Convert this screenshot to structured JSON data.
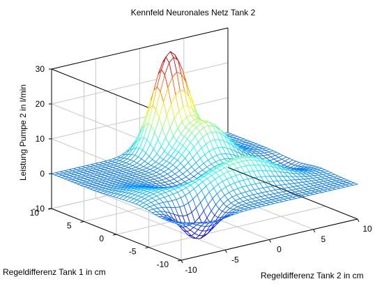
{
  "chart_data": {
    "type": "surface",
    "title": "Kennfeld Neuronales Netz Tank 2",
    "xlabel": "Regeldifferenz Tank 2 in cm",
    "ylabel": "Regeldifferenz Tank 1 in cm",
    "zlabel": "Leistung Pumpe 2 in l/min",
    "xlim": [
      -10,
      10
    ],
    "ylim": [
      -10,
      10
    ],
    "zlim": [
      -10,
      30
    ],
    "x_ticks": [
      "-10",
      "-5",
      "0",
      "5",
      "10"
    ],
    "y_ticks": [
      "-10",
      "-5",
      "0",
      "5",
      "10"
    ],
    "z_ticks": [
      "-10",
      "0",
      "10",
      "20",
      "30"
    ],
    "grid": true,
    "colormap": "jet",
    "grid_resolution": 41,
    "z_range_observed": [
      -9,
      29
    ],
    "surface_features": [
      {
        "name": "peak",
        "x": 2,
        "y": 8,
        "z": 29
      },
      {
        "name": "ridge",
        "x": 3,
        "y": 4,
        "z": 20
      },
      {
        "name": "trough",
        "x": -6,
        "y": -7,
        "z": -9
      },
      {
        "name": "plateau",
        "x": 0,
        "y": -4,
        "z": 8
      }
    ]
  }
}
